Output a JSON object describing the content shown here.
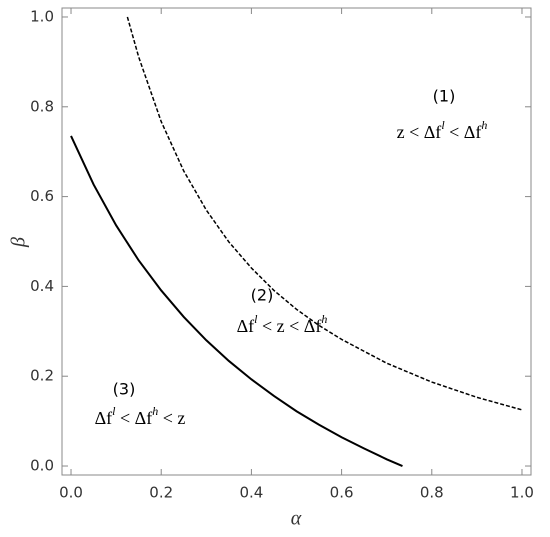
{
  "chart_data": {
    "type": "line",
    "x_label": "α",
    "y_label": "β",
    "xlim": [
      -0.02,
      1.02
    ],
    "ylim": [
      -0.02,
      1.02
    ],
    "xticks": [
      {
        "value": 0,
        "label": "0.0"
      },
      0.2,
      0.4,
      0.6,
      0.8,
      {
        "value": 1,
        "label": "1.0"
      }
    ],
    "yticks": [
      {
        "value": 0,
        "label": "0.0"
      },
      0.2,
      0.4,
      0.6,
      0.8,
      {
        "value": 1,
        "label": "1.0"
      }
    ],
    "series": [
      {
        "color": "#000000",
        "line_style": "solid",
        "x": [
          0,
          0.05,
          0.1,
          0.15,
          0.2,
          0.25,
          0.3,
          0.35,
          0.4,
          0.45,
          0.5,
          0.55,
          0.6,
          0.65,
          0.7,
          0.735
        ],
        "values": [
          0.735,
          0.627,
          0.536,
          0.458,
          0.391,
          0.332,
          0.28,
          0.234,
          0.193,
          0.156,
          0.122,
          0.092,
          0.064,
          0.039,
          0.015,
          0
        ]
      },
      {
        "color": "#000000",
        "line_style": "dashed",
        "x": [
          0.125,
          0.15,
          0.2,
          0.25,
          0.3,
          0.35,
          0.4,
          0.45,
          0.5,
          0.55,
          0.6,
          0.7,
          0.8,
          0.9,
          1.0
        ],
        "values": [
          1.0,
          0.911,
          0.767,
          0.657,
          0.57,
          0.499,
          0.441,
          0.391,
          0.349,
          0.313,
          0.282,
          0.229,
          0.187,
          0.153,
          0.125
        ]
      }
    ],
    "annotations": [
      {
        "label": "(1)",
        "math": [
          {
            "text": "z < Δf"
          },
          {
            "sup": "l"
          },
          {
            "text": " < Δf"
          },
          {
            "sup": "h"
          }
        ]
      },
      {
        "label": "(2)",
        "math": [
          {
            "text": "Δf"
          },
          {
            "sup": "l"
          },
          {
            "text": " < z < Δf"
          },
          {
            "sup": "h"
          }
        ]
      },
      {
        "label": "(3)",
        "math": [
          {
            "text": "Δf"
          },
          {
            "sup": "l"
          },
          {
            "text": " < Δf"
          },
          {
            "sup": "h"
          },
          {
            "text": " < z"
          }
        ]
      }
    ]
  }
}
